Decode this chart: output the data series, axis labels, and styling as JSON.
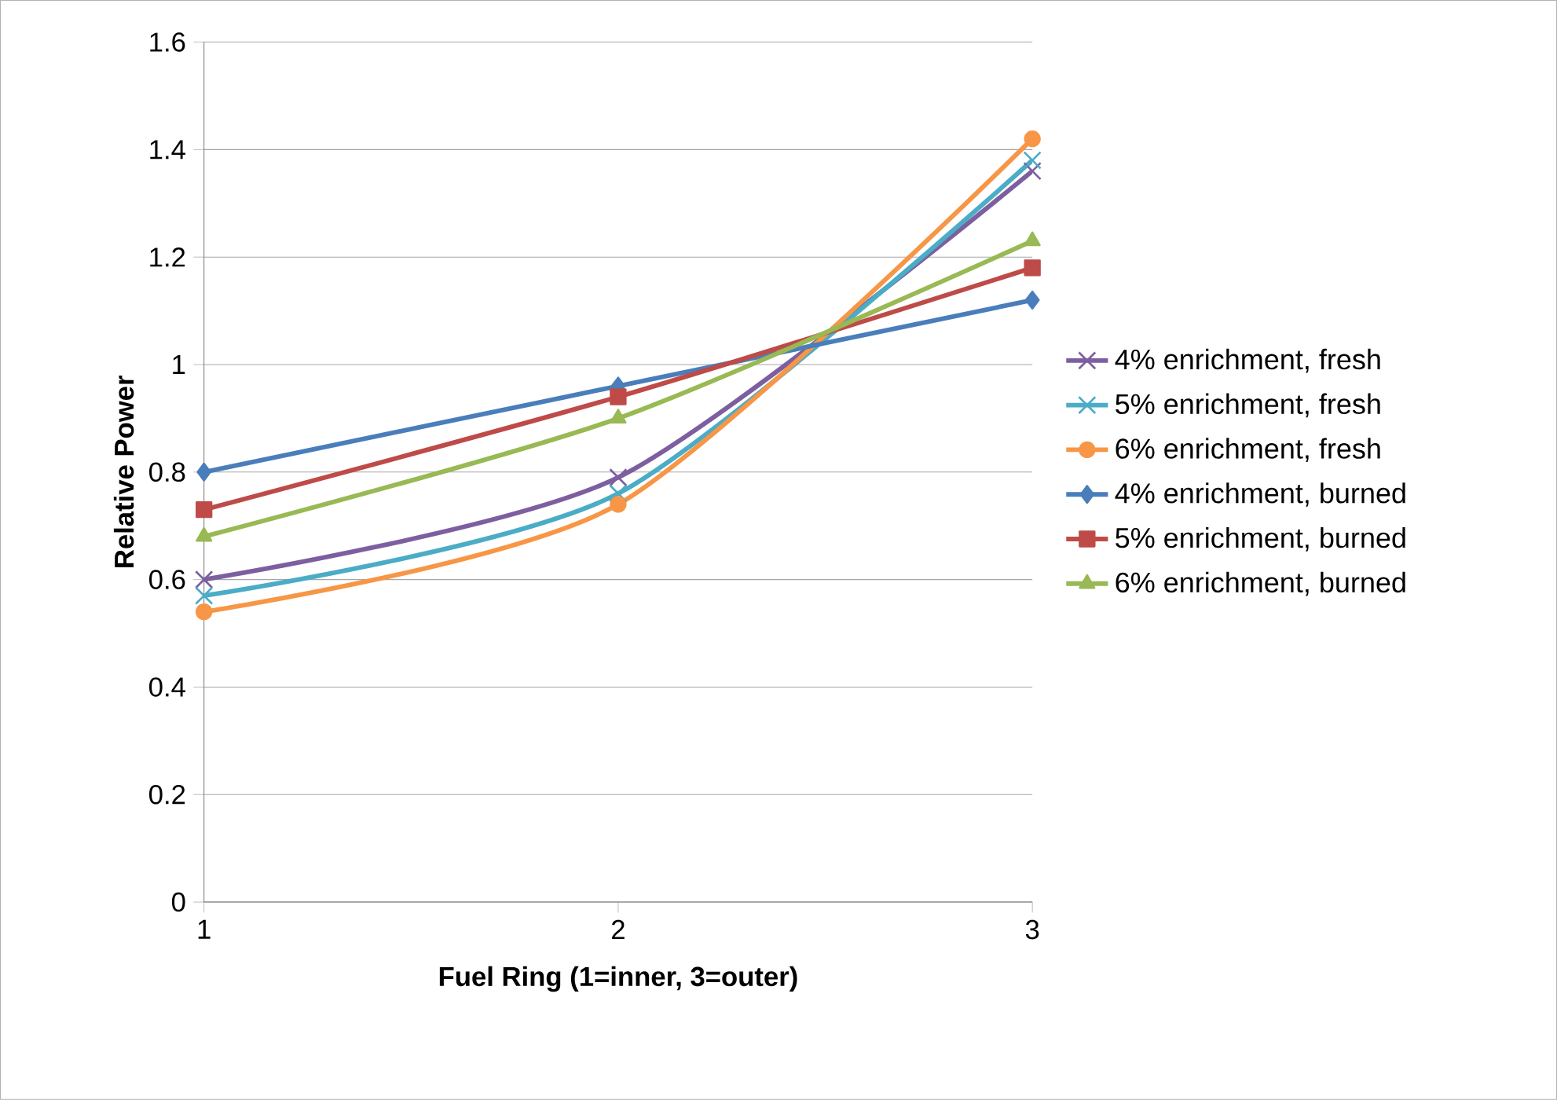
{
  "chart_data": {
    "type": "line",
    "xlabel": "Fuel Ring (1=inner, 3=outer)",
    "ylabel": "Relative Power",
    "categories": [
      "1",
      "2",
      "3"
    ],
    "ylim": [
      0,
      1.6
    ],
    "yticks": [
      0,
      0.2,
      0.4,
      0.6,
      0.8,
      1,
      1.2,
      1.4,
      1.6
    ],
    "grid": "y",
    "legend": "right",
    "series": [
      {
        "name": "4% enrichment, fresh",
        "color": "#7d5fa0",
        "marker": "cross",
        "values": [
          0.6,
          0.79,
          1.36
        ]
      },
      {
        "name": "5% enrichment, fresh",
        "color": "#4bacc6",
        "marker": "cross",
        "values": [
          0.57,
          0.76,
          1.38
        ]
      },
      {
        "name": "6% enrichment, fresh",
        "color": "#f79646",
        "marker": "circle",
        "values": [
          0.54,
          0.74,
          1.42
        ]
      },
      {
        "name": "4% enrichment, burned",
        "color": "#4a7ebb",
        "marker": "diamond",
        "values": [
          0.8,
          0.96,
          1.12
        ]
      },
      {
        "name": "5% enrichment, burned",
        "color": "#be4b48",
        "marker": "square",
        "values": [
          0.73,
          0.94,
          1.18
        ]
      },
      {
        "name": "6% enrichment, burned",
        "color": "#98b954",
        "marker": "triangle",
        "values": [
          0.68,
          0.9,
          1.23
        ]
      }
    ]
  }
}
